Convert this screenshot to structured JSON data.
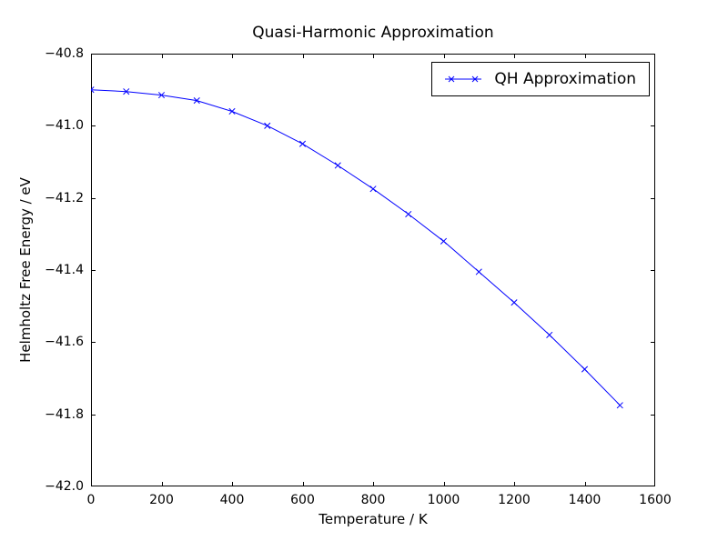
{
  "figure": {
    "background": "#ffffff",
    "axis_color": "#000000",
    "text_color": "#000000"
  },
  "chart_data": {
    "type": "line",
    "title": "Quasi-Harmonic Approximation",
    "xlabel": "Temperature / K",
    "ylabel": "Helmholtz Free Energy / eV",
    "xlim": [
      0,
      1600
    ],
    "ylim": [
      -42.0,
      -40.8
    ],
    "xticks": [
      0,
      200,
      400,
      600,
      800,
      1000,
      1200,
      1400,
      1600
    ],
    "xtick_labels": [
      "0",
      "200",
      "400",
      "600",
      "800",
      "1000",
      "1200",
      "1400",
      "1600"
    ],
    "yticks": [
      -42.0,
      -41.8,
      -41.6,
      -41.4,
      -41.2,
      -41.0,
      -40.8
    ],
    "ytick_labels": [
      "−42.0",
      "−41.8",
      "−41.6",
      "−41.4",
      "−41.2",
      "−41.0",
      "−40.8"
    ],
    "grid": false,
    "legend": {
      "position": "upper right",
      "entries": [
        "QH Approximation"
      ]
    },
    "series": [
      {
        "name": "QH Approximation",
        "color": "#0000ff",
        "marker": "x",
        "x": [
          0,
          100,
          200,
          300,
          400,
          500,
          600,
          700,
          800,
          900,
          1000,
          1100,
          1200,
          1300,
          1400,
          1500
        ],
        "y": [
          -40.9,
          -40.905,
          -40.915,
          -40.93,
          -40.96,
          -41.0,
          -41.05,
          -41.11,
          -41.175,
          -41.245,
          -41.32,
          -41.405,
          -41.49,
          -41.58,
          -41.675,
          -41.775
        ]
      }
    ]
  }
}
